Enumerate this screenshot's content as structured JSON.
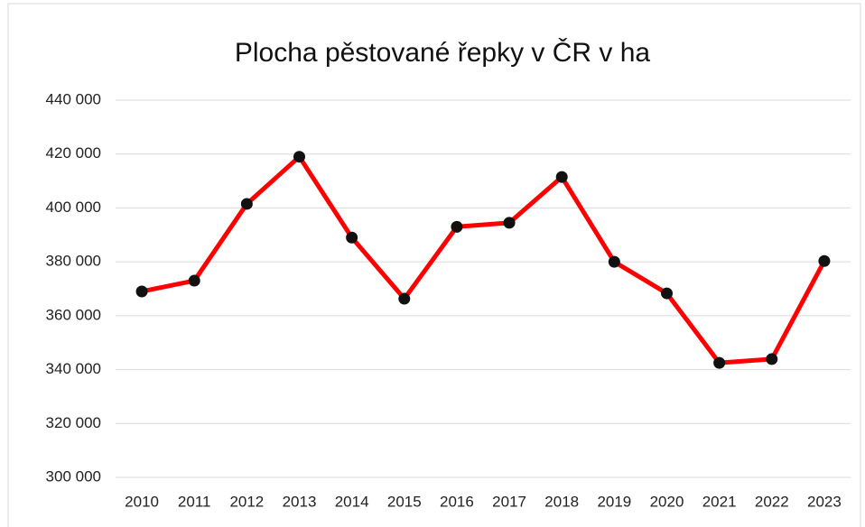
{
  "chart_data": {
    "type": "line",
    "title": "Plocha pěstované řepky v ČR v ha",
    "categories": [
      "2010",
      "2011",
      "2012",
      "2013",
      "2014",
      "2015",
      "2016",
      "2017",
      "2018",
      "2019",
      "2020",
      "2021",
      "2022",
      "2023"
    ],
    "series": [
      {
        "name": "Plocha",
        "color": "#ff0000",
        "marker_color": "#111111",
        "values": [
          369000,
          373000,
          401500,
          419000,
          389000,
          366300,
          393000,
          394500,
          411500,
          380000,
          368300,
          342500,
          343900,
          380300
        ]
      }
    ],
    "ylim": [
      300000,
      440000
    ],
    "yticks": [
      {
        "value": 300000,
        "label": "300 000"
      },
      {
        "value": 320000,
        "label": "320 000"
      },
      {
        "value": 340000,
        "label": "340 000"
      },
      {
        "value": 360000,
        "label": "360 000"
      },
      {
        "value": 380000,
        "label": "380 000"
      },
      {
        "value": 400000,
        "label": "400 000"
      },
      {
        "value": 420000,
        "label": "420 000"
      },
      {
        "value": 440000,
        "label": "440 000"
      }
    ],
    "grid": true
  }
}
